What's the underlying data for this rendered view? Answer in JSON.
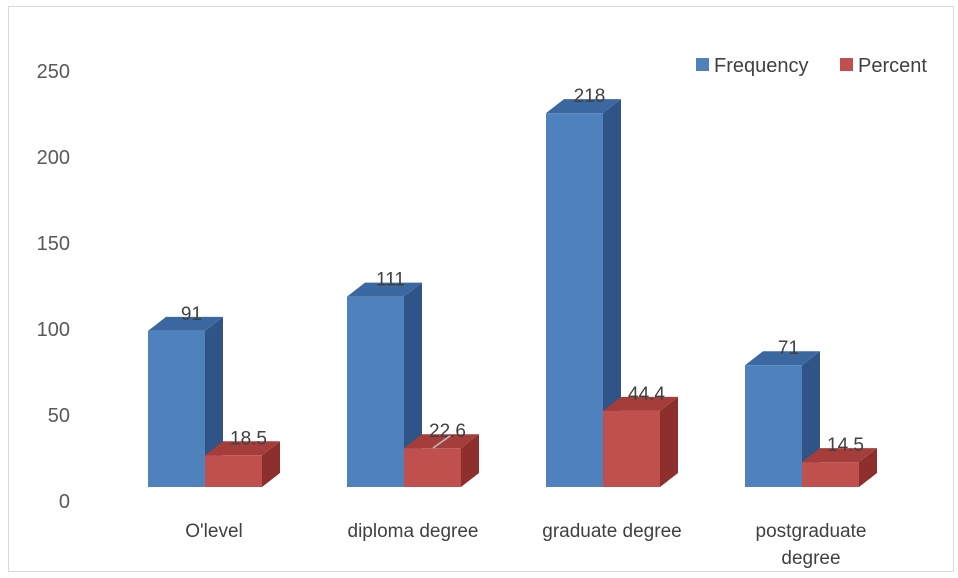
{
  "chart_data": {
    "type": "bar",
    "style": "3d-clustered-column",
    "categories": [
      [
        "O'level"
      ],
      [
        "diploma degree"
      ],
      [
        "graduate degree"
      ],
      [
        "postgraduate",
        "degree"
      ]
    ],
    "series": [
      {
        "name": "Frequency",
        "values": [
          91,
          111,
          218,
          71
        ],
        "labels": [
          "91",
          "111",
          "218",
          "71"
        ],
        "color": "#4f81bd",
        "side_color": "#2f5487",
        "top_color": "#3b68a0"
      },
      {
        "name": "Percent",
        "values": [
          18.5,
          22.6,
          44.4,
          14.5
        ],
        "labels": [
          "18.5",
          "22.6",
          "44.4",
          "14.5"
        ],
        "color": "#c0504d",
        "side_color": "#8c2f2d",
        "top_color": "#a53e3b"
      }
    ],
    "y_ticks": [
      "0",
      "50",
      "100",
      "150",
      "200",
      "250"
    ],
    "ylim": [
      0,
      250
    ],
    "grid": false,
    "legend_position": "top-right",
    "title": "",
    "xlabel": "",
    "ylabel": ""
  }
}
